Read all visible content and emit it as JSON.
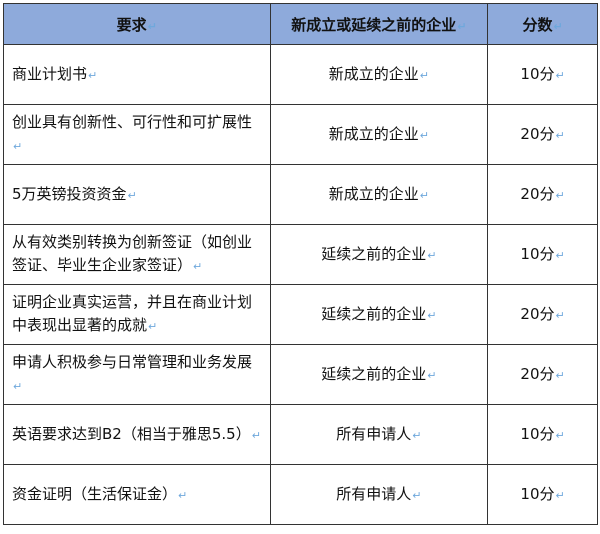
{
  "colors": {
    "header_bg": "#8eaadb",
    "paragraph_mark": "#6fa8dc"
  },
  "paragraph_mark": "↵",
  "headers": [
    "要求",
    "新成立或延续之前的企业",
    "分数"
  ],
  "rows": [
    {
      "req": "商业计划书",
      "type": "新成立的企业",
      "score": "10分"
    },
    {
      "req": "创业具有创新性、可行性和可扩展性",
      "type": "新成立的企业",
      "score": "20分"
    },
    {
      "req": "5万英镑投资资金",
      "type": "新成立的企业",
      "score": "20分"
    },
    {
      "req": "从有效类别转换为创新签证（如创业签证、毕业生企业家签证）",
      "type": "延续之前的企业",
      "score": "10分"
    },
    {
      "req": "证明企业真实运营，并且在商业计划中表现出显著的成就",
      "type": "延续之前的企业",
      "score": "20分"
    },
    {
      "req": "申请人积极参与日常管理和业务发展",
      "type": "延续之前的企业",
      "score": "20分"
    },
    {
      "req": "英语要求达到B2（相当于雅思5.5）",
      "type": "所有申请人",
      "score": "10分"
    },
    {
      "req": "资金证明（生活保证金）",
      "type": "所有申请人",
      "score": "10分"
    }
  ]
}
